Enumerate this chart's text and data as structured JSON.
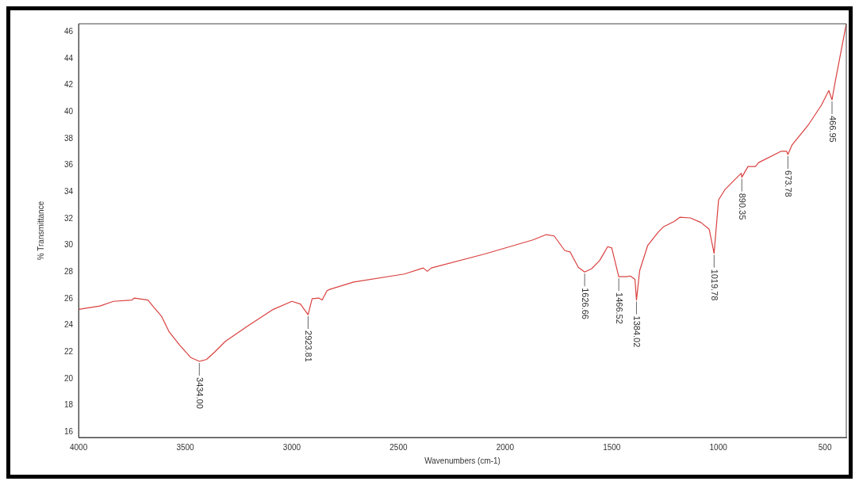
{
  "chart_data": {
    "type": "line",
    "xlabel": "Wavenumbers (cm-1)",
    "ylabel": "% Transmittance",
    "x": [
      4000,
      3900,
      3837,
      3750,
      3738,
      3675,
      3650,
      3612,
      3575,
      3525,
      3475,
      3434,
      3400,
      3362,
      3312,
      3212,
      3087,
      3000,
      2960,
      2924,
      2905,
      2874,
      2858,
      2835,
      2822,
      2710,
      2472,
      2384,
      2365,
      2346,
      2096,
      1870,
      1807,
      1770,
      1720,
      1695,
      1657,
      1627,
      1594,
      1557,
      1519,
      1500,
      1467,
      1431,
      1413,
      1391,
      1384,
      1369,
      1331,
      1281,
      1256,
      1206,
      1181,
      1131,
      1081,
      1043,
      1020,
      999,
      968,
      893,
      890,
      861,
      826,
      811,
      705,
      680,
      674,
      655,
      579,
      517,
      482,
      467,
      454,
      400
    ],
    "series": [
      {
        "color": "#d9413f",
        "values": [
          25.2,
          25.45,
          25.8,
          25.9,
          26.05,
          25.9,
          25.4,
          24.7,
          23.5,
          22.5,
          21.6,
          21.3,
          21.45,
          22.0,
          22.8,
          23.9,
          25.2,
          25.8,
          25.6,
          24.8,
          26.0,
          26.05,
          25.9,
          26.6,
          26.7,
          27.25,
          27.85,
          28.3,
          28.05,
          28.3,
          29.35,
          30.4,
          30.8,
          30.7,
          29.6,
          29.5,
          28.35,
          28.0,
          28.25,
          28.85,
          29.9,
          29.8,
          27.65,
          27.65,
          27.7,
          27.45,
          25.9,
          28.1,
          30.0,
          31.0,
          31.4,
          31.8,
          32.1,
          32.05,
          31.7,
          31.2,
          29.4,
          33.4,
          34.2,
          35.4,
          35.1,
          35.9,
          35.9,
          36.2,
          37.05,
          37.05,
          36.8,
          37.5,
          39.0,
          40.5,
          41.6,
          40.9,
          42.1,
          46.6
        ]
      }
    ],
    "xlim": [
      4000,
      400
    ],
    "xticks": [
      4000,
      3500,
      3000,
      2500,
      2000,
      1500,
      1000,
      500
    ],
    "ylim": [
      15.6,
      46.6
    ],
    "yticks": [
      16,
      18,
      20,
      22,
      24,
      26,
      28,
      30,
      32,
      34,
      36,
      38,
      40,
      42,
      44,
      46
    ],
    "grid": false,
    "legend": false,
    "marker": "none",
    "line_style": "solid",
    "annotations": [
      {
        "text": "3434.00",
        "x": 3434,
        "y": 21.3
      },
      {
        "text": "2923.81",
        "x": 2924,
        "y": 24.8
      },
      {
        "text": "1626.66",
        "x": 1627,
        "y": 28.0
      },
      {
        "text": "1466.52",
        "x": 1467,
        "y": 27.65
      },
      {
        "text": "1384.02",
        "x": 1384,
        "y": 25.9
      },
      {
        "text": "1019.78",
        "x": 1020,
        "y": 29.4
      },
      {
        "text": "890.35",
        "x": 890,
        "y": 35.1
      },
      {
        "text": "673.78",
        "x": 674,
        "y": 36.8
      },
      {
        "text": "466.95",
        "x": 467,
        "y": 40.9
      }
    ]
  }
}
